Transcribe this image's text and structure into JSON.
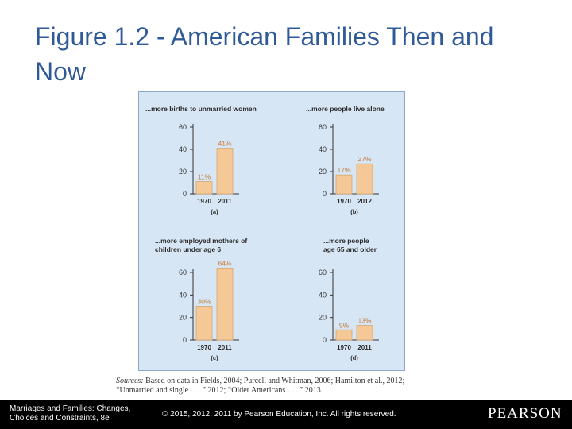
{
  "slide": {
    "title": "Figure 1.2 - American Families Then and Now"
  },
  "chart_data": [
    {
      "type": "bar",
      "title": "...more births to unmarried women",
      "panel_label": "(a)",
      "categories": [
        "1970",
        "2011"
      ],
      "values": [
        11,
        41
      ],
      "value_labels": [
        "11%",
        "41%"
      ],
      "yticks": [
        0,
        20,
        40,
        60
      ],
      "ylim": [
        0,
        60
      ],
      "bar_color": "#f5c897",
      "grid": false
    },
    {
      "type": "bar",
      "title": "...more people live alone",
      "panel_label": "(b)",
      "categories": [
        "1970",
        "2012"
      ],
      "values": [
        17,
        27
      ],
      "value_labels": [
        "17%",
        "27%"
      ],
      "yticks": [
        0,
        20,
        40,
        60
      ],
      "ylim": [
        0,
        60
      ],
      "bar_color": "#f5c897",
      "grid": false
    },
    {
      "type": "bar",
      "title": "...more employed mothers of children under age 6",
      "panel_label": "(c)",
      "categories": [
        "1970",
        "2011"
      ],
      "values": [
        30,
        64
      ],
      "value_labels": [
        "30%",
        "64%"
      ],
      "yticks": [
        0,
        20,
        40,
        60
      ],
      "ylim": [
        0,
        60
      ],
      "bar_color": "#f5c897",
      "grid": false
    },
    {
      "type": "bar",
      "title": "...more people age 65 and older",
      "panel_label": "(d)",
      "categories": [
        "1970",
        "2011"
      ],
      "values": [
        9,
        13
      ],
      "value_labels": [
        "9%",
        "13%"
      ],
      "yticks": [
        0,
        20,
        40,
        60
      ],
      "ylim": [
        0,
        60
      ],
      "bar_color": "#f5c897",
      "grid": false
    }
  ],
  "sources": {
    "label": "Sources:",
    "text": "Based on data in Fields, 2004; Purcell and Whitman, 2006; Hamilton et al., 2012; “Unmarried and single . . . ” 2012; “Older Americans . . . ” 2013"
  },
  "footer": {
    "book": "Marriages and Families: Changes, Choices and Constraints, 8e",
    "copyright": "© 2015, 2012, 2011 by Pearson Education, Inc. All rights reserved.",
    "logo_text": "PEARSON"
  }
}
